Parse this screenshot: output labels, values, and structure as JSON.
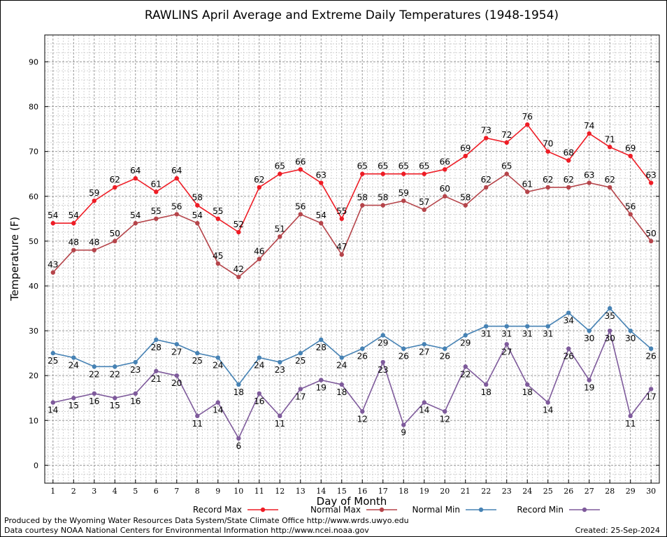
{
  "chart_data": {
    "type": "line",
    "title": "RAWLINS April Average and Extreme Daily Temperatures (1948-1954)",
    "xlabel": "Day of Month",
    "ylabel": "Temperature (F)",
    "x": [
      1,
      2,
      3,
      4,
      5,
      6,
      7,
      8,
      9,
      10,
      11,
      12,
      13,
      14,
      15,
      16,
      17,
      18,
      19,
      20,
      21,
      22,
      23,
      24,
      25,
      26,
      27,
      28,
      29,
      30
    ],
    "xlim": [
      0.6,
      30.4
    ],
    "ylim": [
      -4,
      96
    ],
    "yticks": [
      0,
      10,
      20,
      30,
      40,
      50,
      60,
      70,
      80,
      90
    ],
    "grid": true,
    "legend_position": "bottom",
    "series": [
      {
        "name": "Record Max",
        "color": "#ee1c25",
        "values": [
          54,
          54,
          59,
          62,
          64,
          61,
          64,
          58,
          55,
          52,
          62,
          65,
          66,
          63,
          55,
          65,
          65,
          65,
          65,
          66,
          69,
          73,
          72,
          76,
          70,
          68,
          74,
          71,
          69,
          63
        ]
      },
      {
        "name": "Normal Max",
        "color": "#b5444a",
        "values": [
          43,
          48,
          48,
          50,
          54,
          55,
          56,
          54,
          45,
          42,
          46,
          51,
          56,
          54,
          47,
          58,
          58,
          59,
          57,
          60,
          58,
          62,
          65,
          61,
          62,
          62,
          63,
          62,
          56,
          50
        ]
      },
      {
        "name": "Normal Min",
        "color": "#4682b4",
        "values": [
          25,
          24,
          22,
          22,
          23,
          28,
          27,
          25,
          24,
          18,
          24,
          23,
          25,
          28,
          24,
          26,
          29,
          26,
          27,
          26,
          29,
          31,
          31,
          31,
          31,
          34,
          30,
          35,
          30,
          26
        ]
      },
      {
        "name": "Record Min",
        "color": "#7e5a9b",
        "values": [
          14,
          15,
          16,
          15,
          16,
          21,
          20,
          11,
          14,
          6,
          16,
          11,
          17,
          19,
          18,
          12,
          23,
          9,
          14,
          12,
          22,
          18,
          27,
          18,
          14,
          26,
          19,
          30,
          11,
          17
        ]
      }
    ]
  },
  "footer": {
    "line1": "Produced by the Wyoming Water Resources Data System/State Climate Office http://www.wrds.uwyo.edu",
    "line2": "Data courtesy NOAA National Centers for Environmental Information http://www.ncei.noaa.gov",
    "created": "Created:  25-Sep-2024"
  }
}
